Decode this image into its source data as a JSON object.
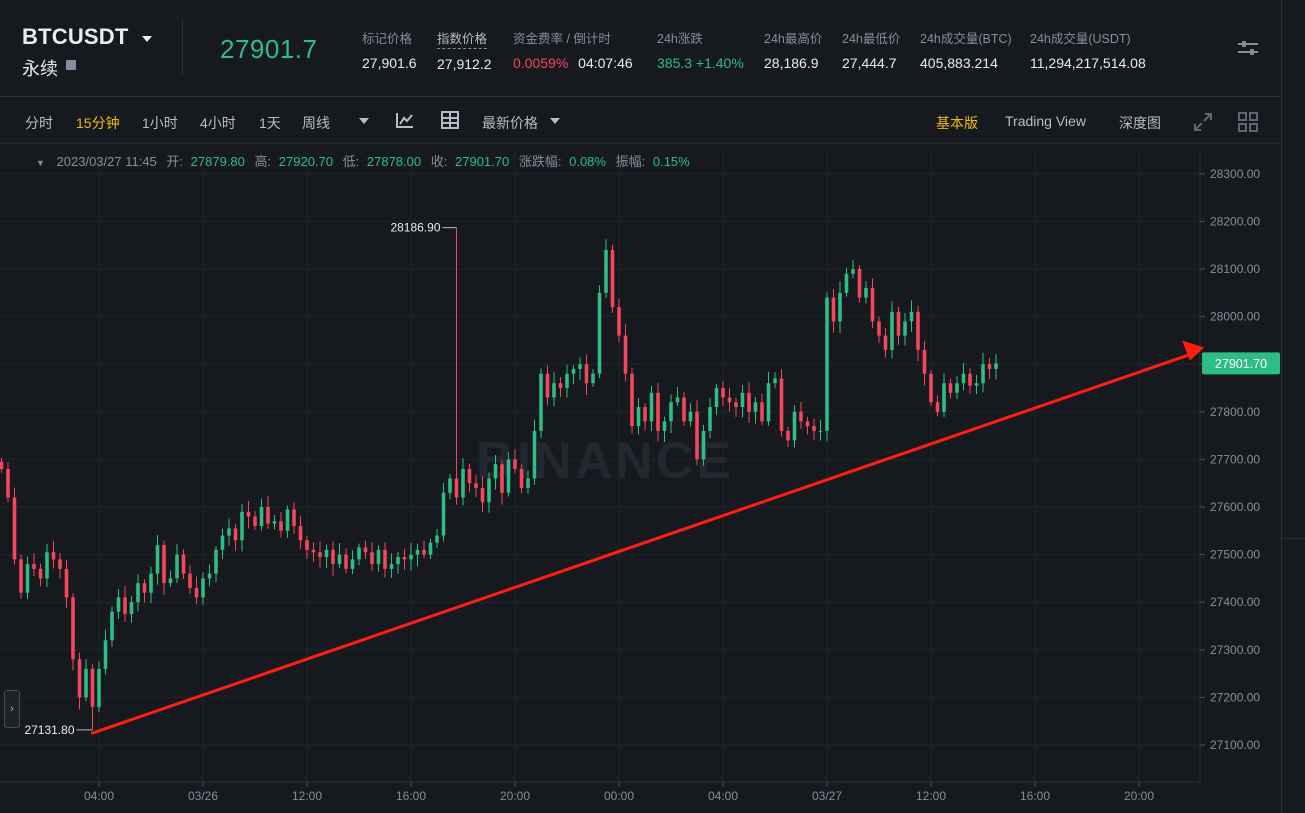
{
  "header": {
    "symbol": "BTCUSDT",
    "contract_type": "永续",
    "last_price": "27901.7",
    "stats": [
      {
        "label": "标记价格",
        "value": "27,901.6"
      },
      {
        "label": "指数价格",
        "value": "27,912.2"
      },
      {
        "label": "资金费率 / 倒计时",
        "value": "0.0059%",
        "value2": "04:07:46"
      },
      {
        "label": "24h涨跌",
        "value": "385.3 +1.40%"
      },
      {
        "label": "24h最高价",
        "value": "28,186.9"
      },
      {
        "label": "24h最低价",
        "value": "27,444.7"
      },
      {
        "label": "24h成交量(BTC)",
        "value": "405,883.214"
      },
      {
        "label": "24h成交量(USDT)",
        "value": "11,294,217,514.08"
      }
    ]
  },
  "toolbar": {
    "intervals": [
      "分时",
      "15分钟",
      "1小时",
      "4小时",
      "1天",
      "周线"
    ],
    "active_interval": "15分钟",
    "price_type": "最新价格",
    "views": [
      "基本版",
      "Trading View",
      "深度图"
    ],
    "active_view": "基本版"
  },
  "ohlc_info": {
    "datetime": "2023/03/27 11:45",
    "open_label": "开:",
    "open": "27879.80",
    "high_label": "高:",
    "high": "27920.70",
    "low_label": "低:",
    "low": "27878.00",
    "close_label": "收:",
    "close": "27901.70",
    "change_label": "涨跌幅:",
    "change": "0.08%",
    "amplitude_label": "振幅:",
    "amplitude": "0.15%"
  },
  "watermark": "BINANCE",
  "colors": {
    "up": "#2ebd85",
    "down": "#f6465d",
    "accent": "#f0b90b",
    "background": "#161a1e",
    "trendline": "#ff1e10"
  },
  "chart_data": {
    "type": "candlestick",
    "interval": "15m",
    "y_ticks": [
      "27100.00",
      "27200.00",
      "27300.00",
      "27400.00",
      "27500.00",
      "27600.00",
      "27700.00",
      "27800.00",
      "27900.00",
      "28000.00",
      "28100.00",
      "28200.00",
      "28300.00"
    ],
    "ylim": [
      27050,
      28340
    ],
    "x_ticks": [
      {
        "label": "04:00",
        "hour": 4
      },
      {
        "label": "03/26",
        "hour": 8
      },
      {
        "label": "12:00",
        "hour": 12
      },
      {
        "label": "16:00",
        "hour": 16
      },
      {
        "label": "20:00",
        "hour": 20
      },
      {
        "label": "00:00",
        "hour": 24
      },
      {
        "label": "04:00",
        "hour": 28
      },
      {
        "label": "03/27",
        "hour": 32
      },
      {
        "label": "12:00",
        "hour": 36
      },
      {
        "label": "16:00",
        "hour": 40
      },
      {
        "label": "20:00",
        "hour": 44
      }
    ],
    "first_candle_hour": 0.25,
    "current_price": "27901.70",
    "max_label": {
      "value": "28186.90",
      "hour": 17.75
    },
    "min_label": {
      "value": "27131.80",
      "hour": 3.75
    },
    "trendline": [
      {
        "hour": 3.75,
        "price": 27125
      },
      {
        "hour": 46.5,
        "price": 27935
      }
    ],
    "closes": [
      27680,
      27620,
      27490,
      27420,
      27480,
      27470,
      27450,
      27505,
      27490,
      27470,
      27410,
      27280,
      27200,
      27260,
      27180,
      27260,
      27320,
      27380,
      27410,
      27375,
      27400,
      27440,
      27420,
      27460,
      27520,
      27440,
      27450,
      27500,
      27460,
      27430,
      27410,
      27450,
      27460,
      27510,
      27540,
      27555,
      27530,
      27590,
      27580,
      27560,
      27600,
      27565,
      27570,
      27550,
      27595,
      27560,
      27530,
      27510,
      27505,
      27495,
      27510,
      27480,
      27500,
      27470,
      27490,
      27515,
      27505,
      27480,
      27510,
      27470,
      27480,
      27495,
      27490,
      27500,
      27510,
      27500,
      27525,
      27540,
      27630,
      27660,
      27620,
      27680,
      27650,
      27640,
      27610,
      27660,
      27690,
      27630,
      27700,
      27680,
      27640,
      27660,
      27760,
      27880,
      27830,
      27860,
      27850,
      27880,
      27890,
      27900,
      27860,
      27880,
      28050,
      28140,
      28020,
      27960,
      27880,
      27770,
      27810,
      27780,
      27840,
      27760,
      27780,
      27820,
      27830,
      27780,
      27800,
      27700,
      27760,
      27810,
      27850,
      27830,
      27820,
      27810,
      27840,
      27800,
      27820,
      27780,
      27860,
      27870,
      27760,
      27740,
      27800,
      27780,
      27770,
      27760,
      27760,
      28040,
      27990,
      28050,
      28090,
      28100,
      28040,
      28060,
      27990,
      27960,
      27930,
      28010,
      27960,
      27990,
      28010,
      27930,
      27880,
      27820,
      27800,
      27860,
      27840,
      27860,
      27880,
      27855,
      27860,
      27900,
      27890,
      27902
    ]
  }
}
